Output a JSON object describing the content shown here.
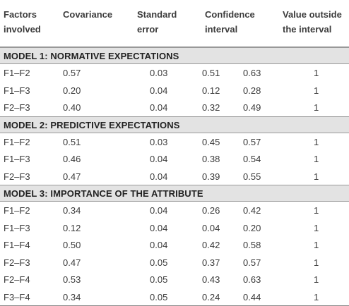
{
  "headers": {
    "factors": [
      "Factors",
      "involved"
    ],
    "covariance": "Covariance",
    "std_error": [
      "Standard",
      "error"
    ],
    "confidence": [
      "Confidence",
      "interval"
    ],
    "value_outside": [
      "Value outside",
      "the interval"
    ]
  },
  "models": [
    {
      "title": "MODEL 1: NORMATIVE EXPECTATIONS",
      "rows": [
        {
          "factors": "F1–F2",
          "cov": "0.57",
          "se": "0.03",
          "lo": "0.51",
          "hi": "0.63",
          "out": "1"
        },
        {
          "factors": "F1–F3",
          "cov": "0.20",
          "se": "0.04",
          "lo": "0.12",
          "hi": "0.28",
          "out": "1"
        },
        {
          "factors": "F2–F3",
          "cov": "0.40",
          "se": "0.04",
          "lo": "0.32",
          "hi": "0.49",
          "out": "1"
        }
      ]
    },
    {
      "title": "MODEL 2: PREDICTIVE EXPECTATIONS",
      "rows": [
        {
          "factors": "F1–F2",
          "cov": "0.51",
          "se": "0.03",
          "lo": "0.45",
          "hi": "0.57",
          "out": "1"
        },
        {
          "factors": "F1–F3",
          "cov": "0.46",
          "se": "0.04",
          "lo": "0.38",
          "hi": "0.54",
          "out": "1"
        },
        {
          "factors": "F2–F3",
          "cov": "0.47",
          "se": "0.04",
          "lo": "0.39",
          "hi": "0.55",
          "out": "1"
        }
      ]
    },
    {
      "title": "MODEL 3: IMPORTANCE OF THE ATTRIBUTE",
      "rows": [
        {
          "factors": "F1–F2",
          "cov": "0.34",
          "se": "0.04",
          "lo": "0.26",
          "hi": "0.42",
          "out": "1"
        },
        {
          "factors": "F1–F3",
          "cov": "0.12",
          "se": "0.04",
          "lo": "0.04",
          "hi": "0.20",
          "out": "1"
        },
        {
          "factors": "F1–F4",
          "cov": "0.50",
          "se": "0.04",
          "lo": "0.42",
          "hi": "0.58",
          "out": "1"
        },
        {
          "factors": "F2–F3",
          "cov": "0.47",
          "se": "0.05",
          "lo": "0.37",
          "hi": "0.57",
          "out": "1"
        },
        {
          "factors": "F2–F4",
          "cov": "0.53",
          "se": "0.05",
          "lo": "0.43",
          "hi": "0.63",
          "out": "1"
        },
        {
          "factors": "F3–F4",
          "cov": "0.34",
          "se": "0.05",
          "lo": "0.24",
          "hi": "0.44",
          "out": "1"
        }
      ]
    }
  ]
}
